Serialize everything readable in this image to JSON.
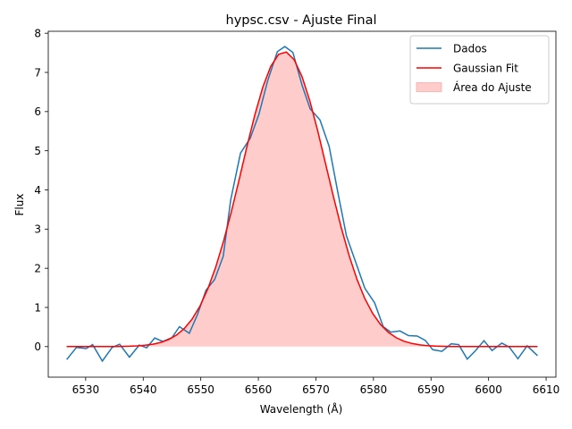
{
  "chart_data": {
    "type": "line",
    "title": "hypsc.csv - Ajuste Final",
    "xlabel": "Wavelength (Å)",
    "ylabel": "Flux",
    "xlim": [
      6523.5,
      6611.7
    ],
    "ylim": [
      -0.78,
      8.05
    ],
    "xticks": [
      6530,
      6540,
      6550,
      6560,
      6570,
      6580,
      6590,
      6600,
      6610
    ],
    "yticks": [
      0,
      1,
      2,
      3,
      4,
      5,
      6,
      7,
      8
    ],
    "legend_position": "top-right",
    "series": [
      {
        "name": "Dados",
        "color": "#1f77b4",
        "x": [
          6526.7,
          6528.4,
          6530.1,
          6531.2,
          6532.9,
          6534.6,
          6535.9,
          6537.6,
          6539.3,
          6540.6,
          6542.0,
          6543.4,
          6545.0,
          6546.3,
          6548.0,
          6549.4,
          6550.9,
          6552.4,
          6553.9,
          6555.2,
          6556.9,
          6558.6,
          6560.1,
          6561.6,
          6563.3,
          6564.6,
          6566.0,
          6567.6,
          6569.0,
          6570.7,
          6572.3,
          6573.8,
          6575.3,
          6576.9,
          6578.5,
          6580.2,
          6581.7,
          6583.0,
          6584.6,
          6586.1,
          6587.6,
          6589.0,
          6590.3,
          6591.9,
          6593.5,
          6594.8,
          6596.3,
          6597.7,
          6599.2,
          6600.6,
          6602.3,
          6603.6,
          6605.1,
          6606.7,
          6608.5
        ],
        "y": [
          -0.33,
          -0.02,
          -0.05,
          0.05,
          -0.37,
          -0.02,
          0.06,
          -0.27,
          0.04,
          -0.03,
          0.22,
          0.13,
          0.23,
          0.51,
          0.34,
          0.81,
          1.44,
          1.71,
          2.31,
          3.74,
          4.94,
          5.32,
          5.93,
          6.78,
          7.53,
          7.66,
          7.51,
          6.67,
          6.07,
          5.79,
          5.11,
          3.95,
          2.83,
          2.16,
          1.49,
          1.12,
          0.51,
          0.37,
          0.4,
          0.28,
          0.27,
          0.16,
          -0.08,
          -0.12,
          0.07,
          0.05,
          -0.32,
          -0.11,
          0.15,
          -0.1,
          0.09,
          -0.01,
          -0.31,
          0.02,
          -0.23
        ]
      },
      {
        "name": "Gaussian Fit",
        "color": "#ff0000",
        "amplitude": 7.53,
        "center": 6564.5,
        "sigma": 7.35,
        "x_range": [
          6526.7,
          6608.5
        ]
      },
      {
        "name": "Área do Ajuste",
        "color": "#ffc9c9",
        "fill_of": "Gaussian Fit"
      }
    ]
  }
}
